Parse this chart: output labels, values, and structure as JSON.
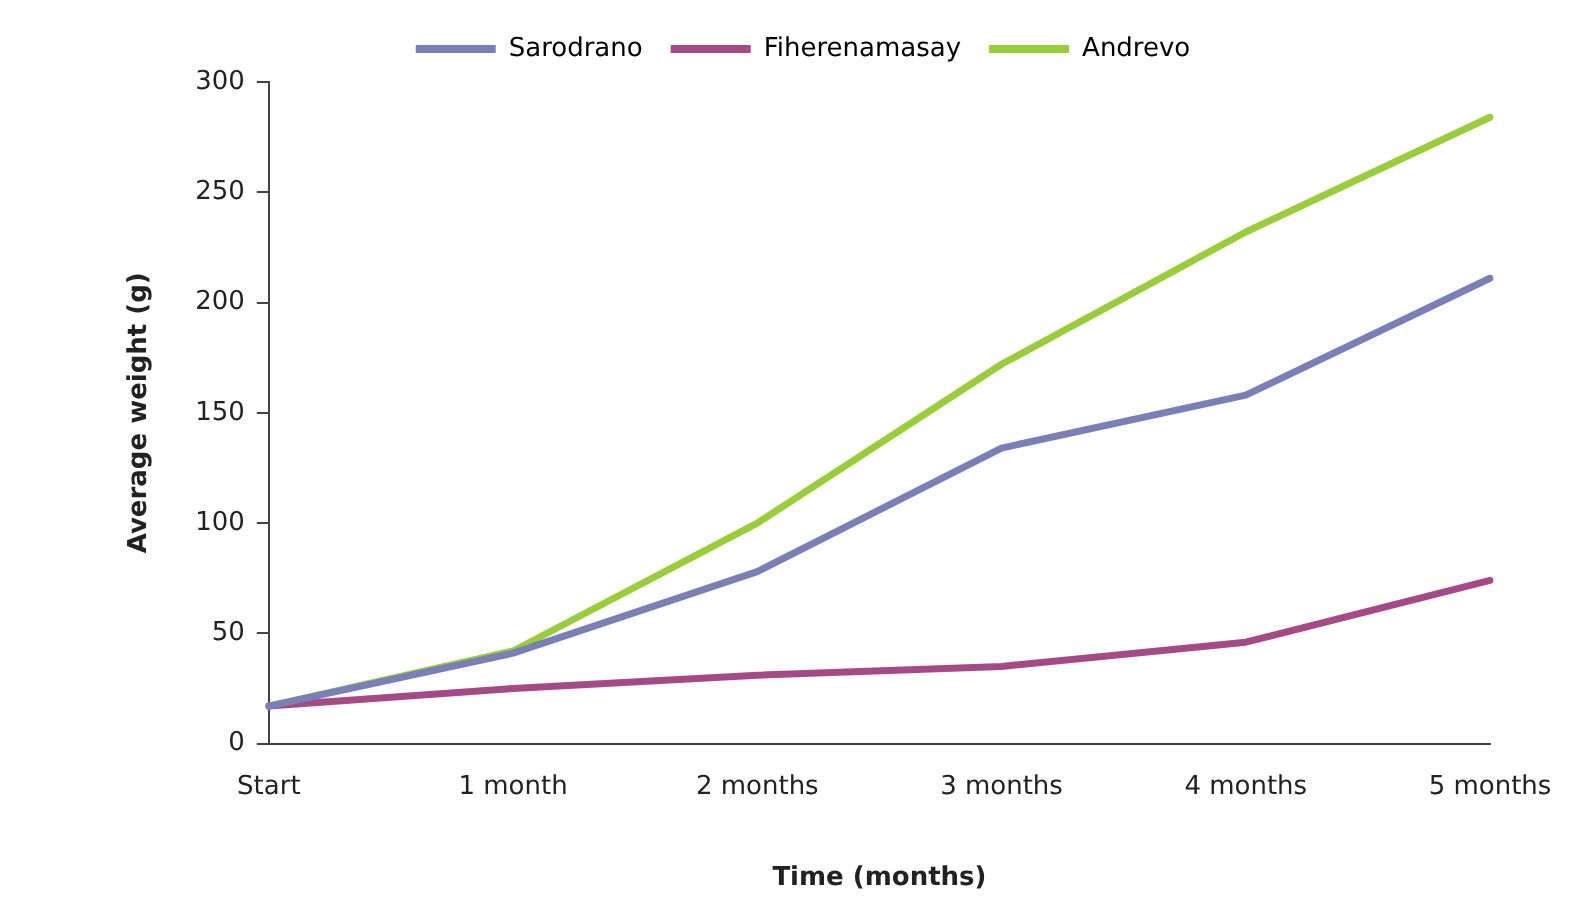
{
  "chart_data": {
    "type": "line",
    "xlabel": "Time (months)",
    "ylabel": "Average weight (g)",
    "categories": [
      "Start",
      "1 month",
      "2 months",
      "3 months",
      "4 months",
      "5 months"
    ],
    "series": [
      {
        "name": "Sarodrano",
        "color": "#7b7fb8",
        "values": [
          17,
          41,
          78,
          134,
          158,
          211
        ]
      },
      {
        "name": "Fiherenamasay",
        "color": "#a64a85",
        "values": [
          17,
          25,
          31,
          35,
          46,
          74
        ]
      },
      {
        "name": "Andrevo",
        "color": "#9acd3c",
        "values": [
          17,
          42,
          100,
          172,
          232,
          284
        ]
      }
    ],
    "ylim": [
      0,
      300
    ],
    "yticks": [
      0,
      50,
      100,
      150,
      200,
      250,
      300
    ],
    "grid": false,
    "legend": "top",
    "marker": "none",
    "line_style": "solid"
  }
}
